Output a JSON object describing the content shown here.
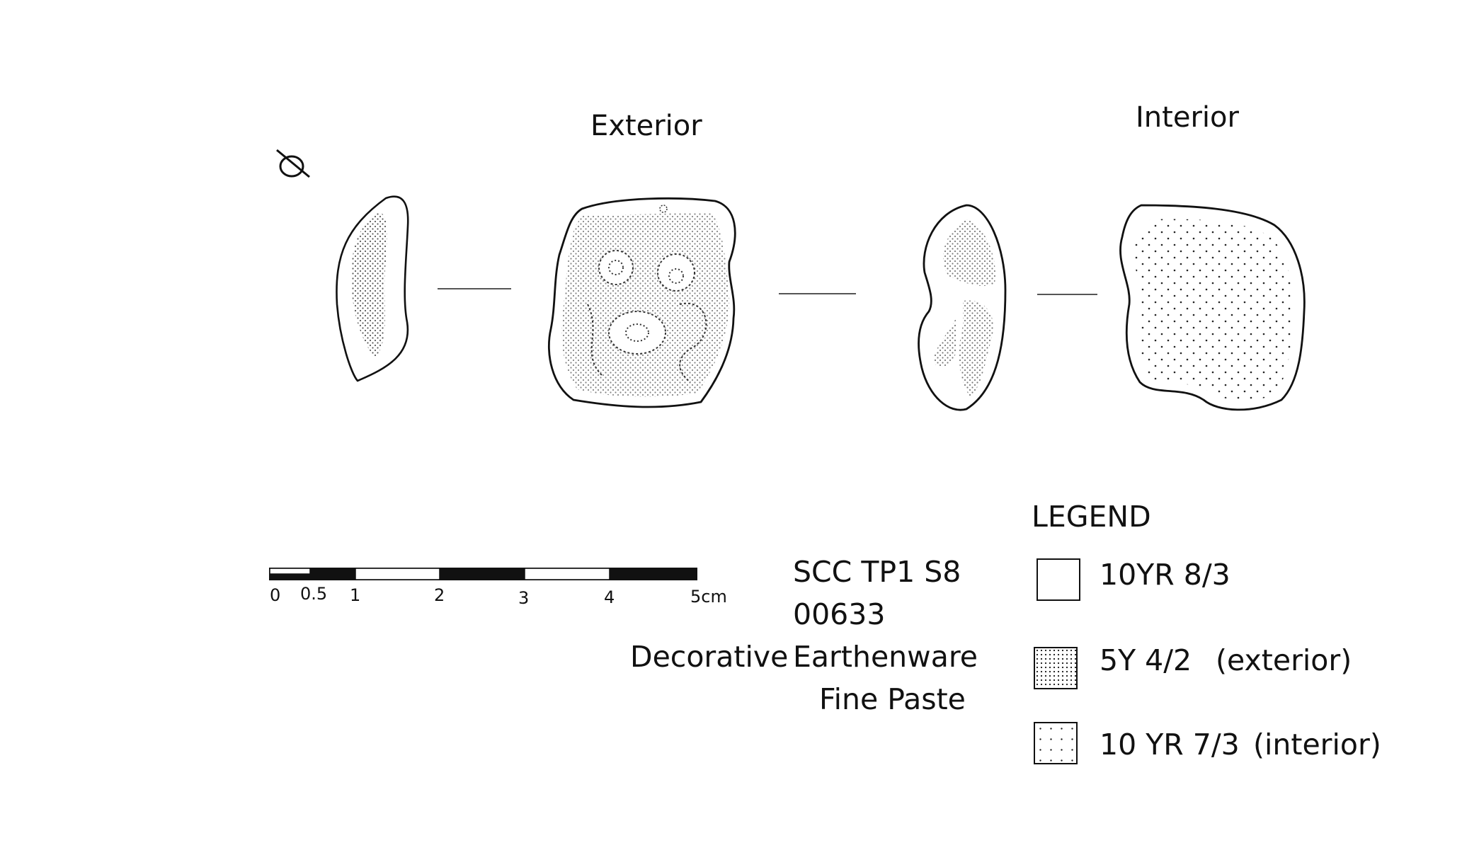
{
  "views": {
    "exterior_label": "Exterior",
    "interior_label": "Interior"
  },
  "diameter_symbol": "Ø",
  "scale_bar": {
    "ticks": [
      "0",
      "0.5",
      "1",
      "2",
      "3",
      "4",
      "5cm"
    ]
  },
  "specimen": {
    "site_context": "SCC TP1 S8",
    "catalog_number": "00633",
    "decoration": "Decorative",
    "ware": "Earthenware",
    "paste": "Fine Paste"
  },
  "legend": {
    "title": "LEGEND",
    "items": [
      {
        "code": "10YR 8/3",
        "note": "",
        "fill": "plain"
      },
      {
        "code": "5Y 4/2",
        "note": "(exterior)",
        "fill": "dense-stipple"
      },
      {
        "code": "10 YR 7/3",
        "note": "(interior)",
        "fill": "sparse-stipple"
      }
    ]
  }
}
